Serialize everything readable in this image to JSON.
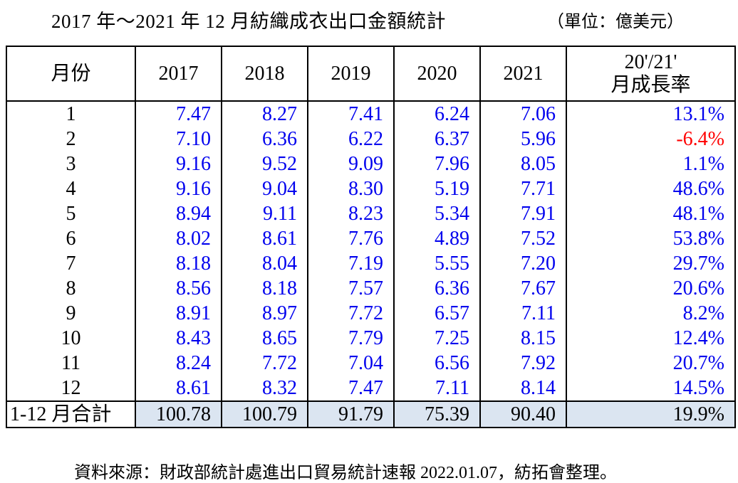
{
  "title": {
    "main": "2017 年～2021 年 12 月紡織成衣出口金額統計",
    "unit": "（單位：億美元）"
  },
  "table": {
    "headers": {
      "month": "月份",
      "years": [
        "2017",
        "2018",
        "2019",
        "2020",
        "2021"
      ],
      "growth_line1": "20'/21'",
      "growth_line2": "月成長率"
    },
    "rows": [
      {
        "month": "1",
        "values": [
          "7.47",
          "8.27",
          "7.41",
          "6.24",
          "7.06"
        ],
        "growth": "13.1%",
        "negative": false
      },
      {
        "month": "2",
        "values": [
          "7.10",
          "6.36",
          "6.22",
          "6.37",
          "5.96"
        ],
        "growth": "-6.4%",
        "negative": true
      },
      {
        "month": "3",
        "values": [
          "9.16",
          "9.52",
          "9.09",
          "7.96",
          "8.05"
        ],
        "growth": "1.1%",
        "negative": false
      },
      {
        "month": "4",
        "values": [
          "9.16",
          "9.04",
          "8.30",
          "5.19",
          "7.71"
        ],
        "growth": "48.6%",
        "negative": false
      },
      {
        "month": "5",
        "values": [
          "8.94",
          "9.11",
          "8.23",
          "5.34",
          "7.91"
        ],
        "growth": "48.1%",
        "negative": false
      },
      {
        "month": "6",
        "values": [
          "8.02",
          "8.61",
          "7.76",
          "4.89",
          "7.52"
        ],
        "growth": "53.8%",
        "negative": false
      },
      {
        "month": "7",
        "values": [
          "8.18",
          "8.04",
          "7.19",
          "5.55",
          "7.20"
        ],
        "growth": "29.7%",
        "negative": false
      },
      {
        "month": "8",
        "values": [
          "8.56",
          "8.18",
          "7.57",
          "6.36",
          "7.67"
        ],
        "growth": "20.6%",
        "negative": false
      },
      {
        "month": "9",
        "values": [
          "8.91",
          "8.97",
          "7.72",
          "6.57",
          "7.11"
        ],
        "growth": "8.2%",
        "negative": false
      },
      {
        "month": "10",
        "values": [
          "8.43",
          "8.65",
          "7.79",
          "7.25",
          "8.15"
        ],
        "growth": "12.4%",
        "negative": false
      },
      {
        "month": "11",
        "values": [
          "8.24",
          "7.72",
          "7.04",
          "6.56",
          "7.92"
        ],
        "growth": "20.7%",
        "negative": false
      },
      {
        "month": "12",
        "values": [
          "8.61",
          "8.32",
          "7.47",
          "7.11",
          "8.14"
        ],
        "growth": "14.5%",
        "negative": false
      }
    ],
    "total": {
      "label": "1-12 月合計",
      "values": [
        "100.78",
        "100.79",
        "91.79",
        "75.39",
        "90.40"
      ],
      "growth": "19.9%"
    }
  },
  "footer": "資料來源：財政部統計處進出口貿易統計速報 2022.01.07，紡拓會整理。",
  "colors": {
    "value_text": "#0000ee",
    "negative_text": "#ff0000",
    "total_row_fill": "#dbe5f1"
  }
}
